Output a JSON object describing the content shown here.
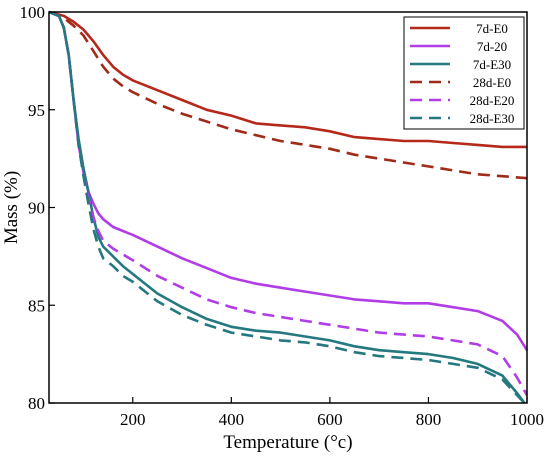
{
  "chart_data": {
    "type": "line",
    "xlabel": "Temperature (°c)",
    "ylabel": "Mass (%)",
    "xlim": [
      30,
      1000
    ],
    "ylim": [
      80,
      100
    ],
    "x_ticks": [
      200,
      400,
      600,
      800,
      1000
    ],
    "y_ticks": [
      80,
      85,
      90,
      95,
      100
    ],
    "legend_position": "top-right",
    "grid": false,
    "series": [
      {
        "name": "7d-E0",
        "color": "#b5291a",
        "dash": "solid",
        "points": [
          [
            30,
            100
          ],
          [
            60,
            99.8
          ],
          [
            80,
            99.5
          ],
          [
            100,
            99.1
          ],
          [
            120,
            98.5
          ],
          [
            140,
            97.8
          ],
          [
            160,
            97.2
          ],
          [
            180,
            96.8
          ],
          [
            200,
            96.5
          ],
          [
            250,
            96.0
          ],
          [
            300,
            95.5
          ],
          [
            350,
            95.0
          ],
          [
            400,
            94.7
          ],
          [
            450,
            94.3
          ],
          [
            500,
            94.2
          ],
          [
            550,
            94.1
          ],
          [
            600,
            93.9
          ],
          [
            650,
            93.6
          ],
          [
            700,
            93.5
          ],
          [
            750,
            93.4
          ],
          [
            800,
            93.4
          ],
          [
            850,
            93.3
          ],
          [
            900,
            93.2
          ],
          [
            950,
            93.1
          ],
          [
            1000,
            93.1
          ]
        ]
      },
      {
        "name": "7d-20",
        "color": "#b13de6",
        "dash": "solid",
        "points": [
          [
            30,
            100
          ],
          [
            50,
            99.8
          ],
          [
            60,
            99.2
          ],
          [
            70,
            97.8
          ],
          [
            80,
            95.5
          ],
          [
            90,
            93.2
          ],
          [
            100,
            91.8
          ],
          [
            110,
            90.8
          ],
          [
            120,
            90.2
          ],
          [
            130,
            89.7
          ],
          [
            140,
            89.4
          ],
          [
            160,
            89.0
          ],
          [
            180,
            88.8
          ],
          [
            200,
            88.6
          ],
          [
            250,
            88.0
          ],
          [
            300,
            87.4
          ],
          [
            350,
            86.9
          ],
          [
            400,
            86.4
          ],
          [
            450,
            86.1
          ],
          [
            500,
            85.9
          ],
          [
            550,
            85.7
          ],
          [
            600,
            85.5
          ],
          [
            650,
            85.3
          ],
          [
            700,
            85.2
          ],
          [
            750,
            85.1
          ],
          [
            800,
            85.1
          ],
          [
            850,
            84.9
          ],
          [
            900,
            84.7
          ],
          [
            950,
            84.2
          ],
          [
            980,
            83.5
          ],
          [
            1000,
            82.7
          ]
        ]
      },
      {
        "name": "7d-E30",
        "color": "#24787f",
        "dash": "solid",
        "points": [
          [
            30,
            100
          ],
          [
            50,
            99.8
          ],
          [
            60,
            99.2
          ],
          [
            70,
            97.8
          ],
          [
            80,
            95.5
          ],
          [
            90,
            93.5
          ],
          [
            100,
            92.0
          ],
          [
            110,
            90.8
          ],
          [
            120,
            89.5
          ],
          [
            130,
            88.5
          ],
          [
            140,
            88.0
          ],
          [
            160,
            87.5
          ],
          [
            180,
            87.0
          ],
          [
            200,
            86.6
          ],
          [
            250,
            85.6
          ],
          [
            300,
            84.9
          ],
          [
            350,
            84.3
          ],
          [
            400,
            83.9
          ],
          [
            450,
            83.7
          ],
          [
            500,
            83.6
          ],
          [
            550,
            83.4
          ],
          [
            600,
            83.2
          ],
          [
            650,
            82.9
          ],
          [
            700,
            82.7
          ],
          [
            750,
            82.6
          ],
          [
            800,
            82.5
          ],
          [
            850,
            82.3
          ],
          [
            900,
            82.0
          ],
          [
            950,
            81.4
          ],
          [
            980,
            80.5
          ],
          [
            995,
            80.0
          ]
        ]
      },
      {
        "name": "28d-E0",
        "color": "#a22a18",
        "dash": "dashed",
        "points": [
          [
            30,
            100
          ],
          [
            60,
            99.7
          ],
          [
            80,
            99.3
          ],
          [
            100,
            98.8
          ],
          [
            120,
            98.0
          ],
          [
            140,
            97.2
          ],
          [
            160,
            96.6
          ],
          [
            180,
            96.2
          ],
          [
            200,
            95.9
          ],
          [
            250,
            95.3
          ],
          [
            300,
            94.8
          ],
          [
            350,
            94.4
          ],
          [
            400,
            94.0
          ],
          [
            450,
            93.7
          ],
          [
            500,
            93.4
          ],
          [
            550,
            93.2
          ],
          [
            600,
            93.0
          ],
          [
            650,
            92.7
          ],
          [
            700,
            92.5
          ],
          [
            750,
            92.3
          ],
          [
            800,
            92.1
          ],
          [
            850,
            91.9
          ],
          [
            900,
            91.7
          ],
          [
            950,
            91.6
          ],
          [
            1000,
            91.5
          ]
        ]
      },
      {
        "name": "28d-E20",
        "color": "#b13de6",
        "dash": "dashed",
        "points": [
          [
            30,
            100
          ],
          [
            50,
            99.8
          ],
          [
            60,
            99.2
          ],
          [
            70,
            97.8
          ],
          [
            80,
            95.5
          ],
          [
            90,
            93.2
          ],
          [
            100,
            91.7
          ],
          [
            110,
            90.5
          ],
          [
            120,
            89.5
          ],
          [
            130,
            88.8
          ],
          [
            140,
            88.3
          ],
          [
            160,
            87.9
          ],
          [
            180,
            87.6
          ],
          [
            200,
            87.3
          ],
          [
            250,
            86.5
          ],
          [
            300,
            85.9
          ],
          [
            350,
            85.3
          ],
          [
            400,
            84.9
          ],
          [
            450,
            84.6
          ],
          [
            500,
            84.4
          ],
          [
            550,
            84.2
          ],
          [
            600,
            84.0
          ],
          [
            650,
            83.8
          ],
          [
            700,
            83.6
          ],
          [
            750,
            83.5
          ],
          [
            800,
            83.4
          ],
          [
            850,
            83.2
          ],
          [
            900,
            83.0
          ],
          [
            950,
            82.4
          ],
          [
            980,
            81.3
          ],
          [
            1000,
            80.4
          ]
        ]
      },
      {
        "name": "28d-E30",
        "color": "#24787f",
        "dash": "dashed",
        "points": [
          [
            30,
            100
          ],
          [
            50,
            99.8
          ],
          [
            60,
            99.2
          ],
          [
            70,
            97.8
          ],
          [
            80,
            95.5
          ],
          [
            90,
            93.2
          ],
          [
            100,
            91.6
          ],
          [
            110,
            90.2
          ],
          [
            120,
            88.9
          ],
          [
            130,
            88.0
          ],
          [
            140,
            87.4
          ],
          [
            160,
            87.0
          ],
          [
            180,
            86.5
          ],
          [
            200,
            86.2
          ],
          [
            250,
            85.2
          ],
          [
            300,
            84.5
          ],
          [
            350,
            84.0
          ],
          [
            400,
            83.6
          ],
          [
            450,
            83.4
          ],
          [
            500,
            83.2
          ],
          [
            550,
            83.1
          ],
          [
            600,
            82.9
          ],
          [
            650,
            82.6
          ],
          [
            700,
            82.4
          ],
          [
            750,
            82.3
          ],
          [
            800,
            82.2
          ],
          [
            850,
            82.0
          ],
          [
            900,
            81.8
          ],
          [
            950,
            81.2
          ],
          [
            980,
            80.4
          ],
          [
            995,
            80.0
          ]
        ]
      }
    ]
  }
}
